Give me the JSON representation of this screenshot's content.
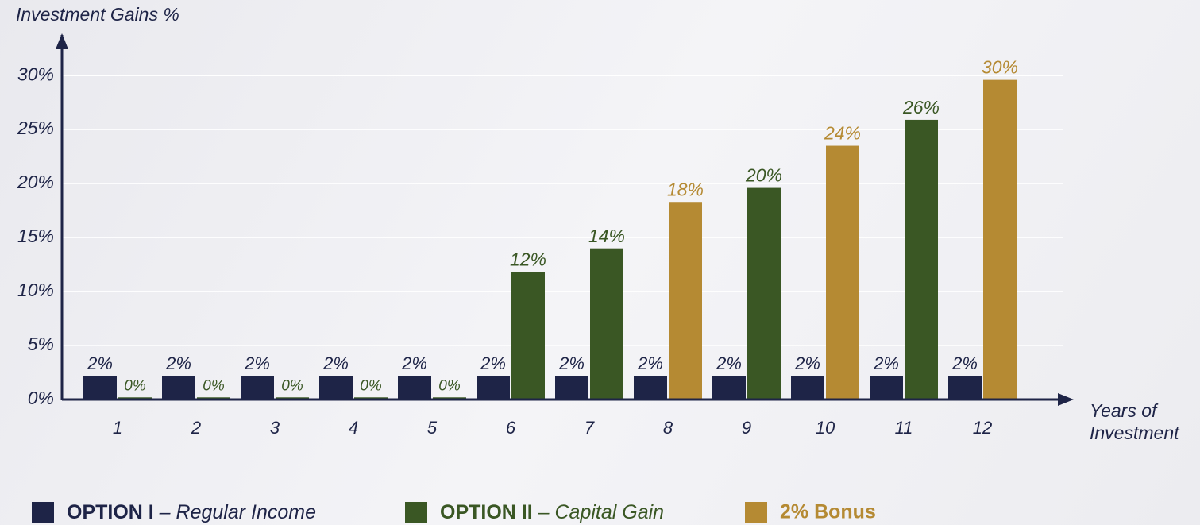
{
  "chart_data": {
    "type": "bar",
    "title": "Investment Gains %",
    "x_label": "Years of Investment",
    "categories": [
      "1",
      "2",
      "3",
      "4",
      "5",
      "6",
      "7",
      "8",
      "9",
      "10",
      "11",
      "12"
    ],
    "series": [
      {
        "name": "OPTION I – Regular Income",
        "color": "#1e2447",
        "values": [
          2.2,
          2.2,
          2.2,
          2.2,
          2.2,
          2.2,
          2.2,
          2.2,
          2.2,
          2.2,
          2.2,
          2.2
        ],
        "value_labels": [
          "2%",
          "2%",
          "2%",
          "2%",
          "2%",
          "2%",
          "2%",
          "2%",
          "2%",
          "2%",
          "2%",
          "2%"
        ]
      },
      {
        "name": "OPTION II – Capital Gain",
        "color": "#3a5724",
        "values": [
          0.2,
          0.2,
          0.2,
          0.2,
          0.2,
          11.8,
          14,
          null,
          19.6,
          null,
          25.9,
          null
        ],
        "value_labels": [
          "0%",
          "0%",
          "0%",
          "0%",
          "0%",
          "12%",
          "14%",
          null,
          "20%",
          null,
          "26%",
          null
        ]
      },
      {
        "name": "2% Bonus",
        "color": "#b58a33",
        "values": [
          null,
          null,
          null,
          null,
          null,
          null,
          null,
          18.3,
          null,
          23.5,
          null,
          29.6
        ],
        "value_labels": [
          null,
          null,
          null,
          null,
          null,
          null,
          null,
          "18%",
          null,
          "24%",
          null,
          "30%"
        ]
      }
    ],
    "ylim": [
      0,
      32
    ],
    "yticks": [
      {
        "value": 0,
        "label": "0%"
      },
      {
        "value": 5,
        "label": "5%"
      },
      {
        "value": 10,
        "label": "10%"
      },
      {
        "value": 15,
        "label": "15%"
      },
      {
        "value": 20,
        "label": "20%"
      },
      {
        "value": 25,
        "label": "25%"
      },
      {
        "value": 30,
        "label": "30%"
      }
    ],
    "grid": true
  }
}
